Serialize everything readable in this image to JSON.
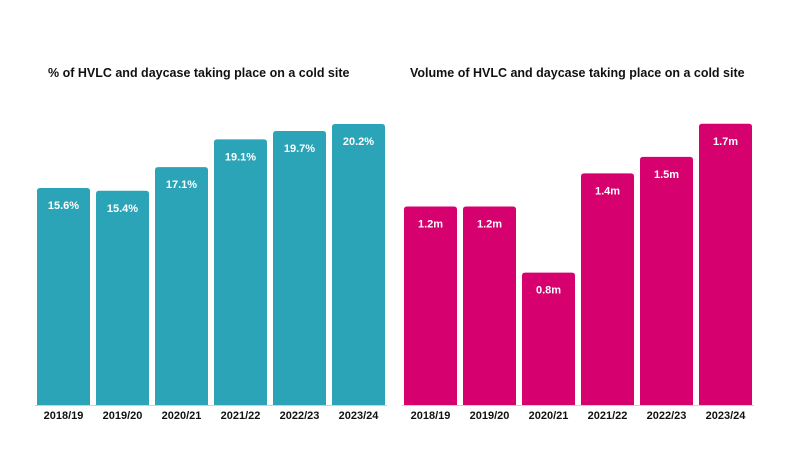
{
  "chart_data": [
    {
      "type": "bar",
      "title": "% of HVLC and daycase taking place on a cold site",
      "categories": [
        "2018/19",
        "2019/20",
        "2020/21",
        "2021/22",
        "2022/23",
        "2023/24"
      ],
      "values": [
        15.6,
        15.4,
        17.1,
        19.1,
        19.7,
        20.2
      ],
      "data_labels": [
        "15.6%",
        "15.4%",
        "17.1%",
        "19.1%",
        "19.7%",
        "20.2%"
      ],
      "color": "#2ba4b7",
      "ylim": [
        0,
        22
      ],
      "grid": false,
      "legend": "none"
    },
    {
      "type": "bar",
      "title": "Volume of HVLC and daycase taking place on a cold site",
      "categories": [
        "2018/19",
        "2019/20",
        "2020/21",
        "2021/22",
        "2022/23",
        "2023/24"
      ],
      "values": [
        1.2,
        1.2,
        0.8,
        1.4,
        1.5,
        1.7
      ],
      "data_labels": [
        "1.2m",
        "1.2m",
        "0.8m",
        "1.4m",
        "1.5m",
        "1.7m"
      ],
      "color": "#d6006f",
      "ylim": [
        0,
        1.85
      ],
      "grid": false,
      "legend": "none"
    }
  ]
}
